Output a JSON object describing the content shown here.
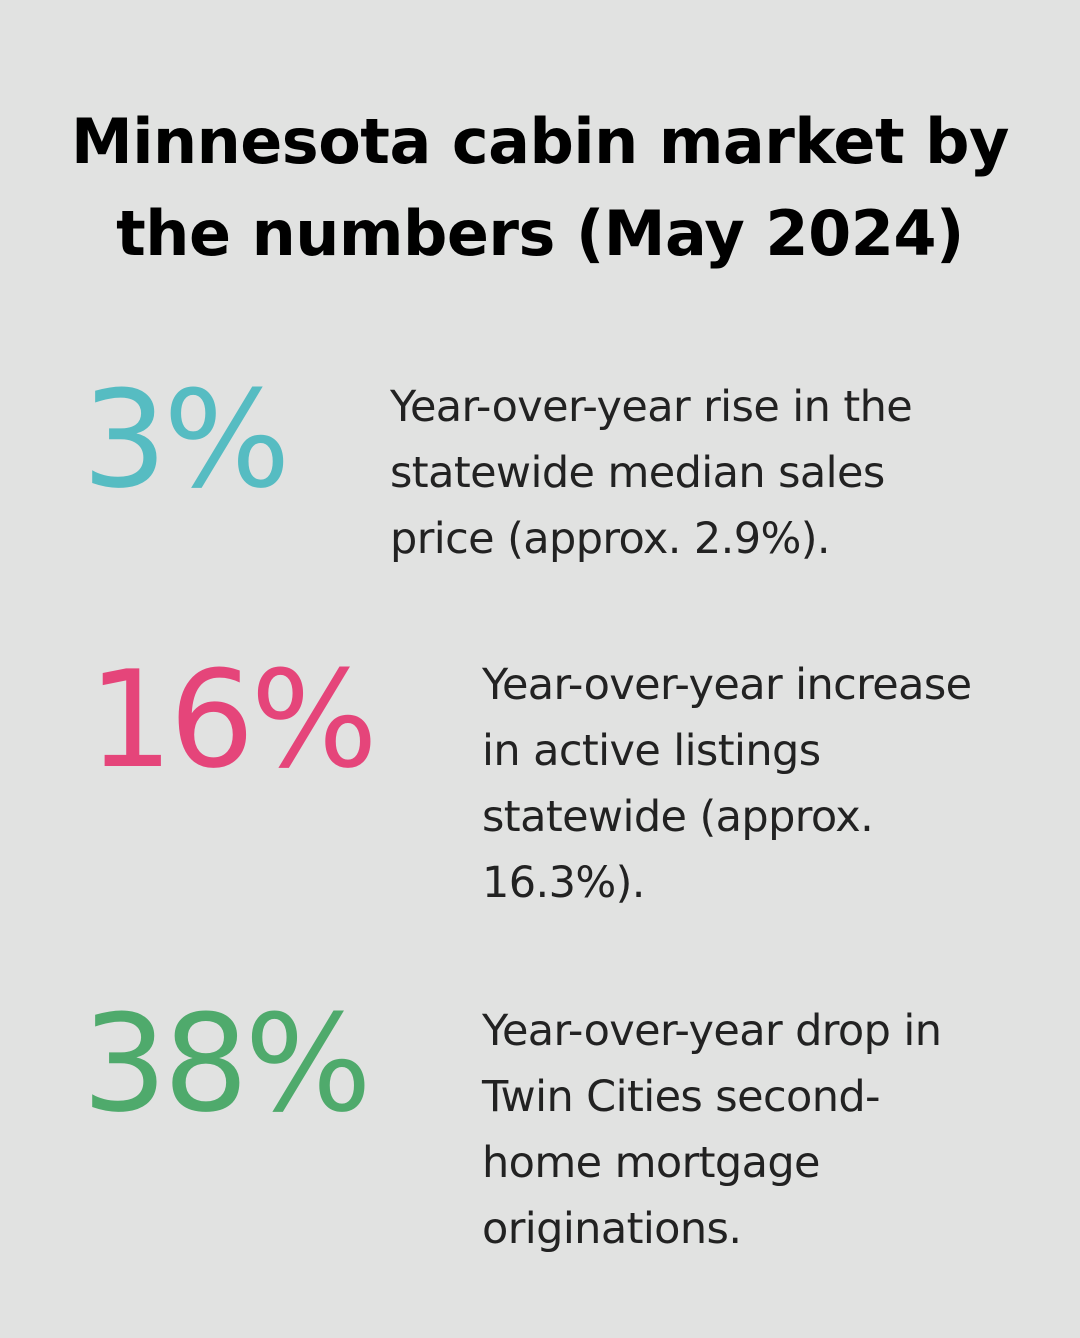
{
  "title": {
    "line1": "Minnesota cabin market by",
    "line2": "the numbers (May 2024)"
  },
  "stats": [
    {
      "value": "3%",
      "color": "#56bcc2",
      "lines": [
        "Year-over-year rise in the",
        "statewide median sales",
        "price (approx. 2.9%)."
      ]
    },
    {
      "value": "16%",
      "color": "#e5457a",
      "lines": [
        "Year-over-year increase",
        "in active listings",
        "statewide (approx.",
        "16.3%)."
      ]
    },
    {
      "value": "38%",
      "color": "#4faa6c",
      "lines": [
        "Year-over-year drop in",
        "Twin Cities second-",
        "home mortgage",
        "originations."
      ]
    }
  ]
}
